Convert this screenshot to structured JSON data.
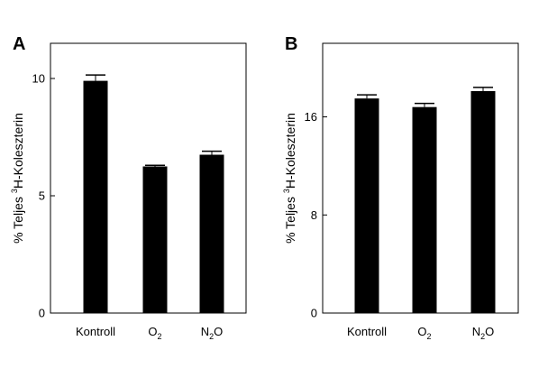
{
  "chart_data": [
    {
      "type": "bar",
      "panel_label": "A",
      "categories": [
        {
          "text": "Kontroll",
          "sub": ""
        },
        {
          "text": "O",
          "sub": "2"
        },
        {
          "text": "N",
          "sub": "2",
          "after": "O"
        }
      ],
      "values": [
        9.9,
        6.25,
        6.75
      ],
      "errors": [
        0.25,
        0.05,
        0.15
      ],
      "ylim": [
        0,
        11.5
      ],
      "yticks": [
        {
          "value": 0,
          "label": "0"
        },
        {
          "value": 5,
          "label": "5"
        },
        {
          "value": 10,
          "label": "10"
        }
      ],
      "ylabel": {
        "pre": "% Teljes ",
        "sup": "3",
        "post": "H-Koleszterin"
      },
      "bar_color": "#000000"
    },
    {
      "type": "bar",
      "panel_label": "B",
      "categories": [
        {
          "text": "Kontroll",
          "sub": ""
        },
        {
          "text": "O",
          "sub": "2"
        },
        {
          "text": "N",
          "sub": "2",
          "after": "O"
        }
      ],
      "values": [
        17.5,
        16.8,
        18.1
      ],
      "errors": [
        0.3,
        0.3,
        0.3
      ],
      "ylim": [
        0,
        22
      ],
      "yticks": [
        {
          "value": 0,
          "label": "0"
        },
        {
          "value": 8,
          "label": "8"
        },
        {
          "value": 16,
          "label": "16"
        }
      ],
      "ylabel": {
        "pre": "% Teljes ",
        "sup": "3",
        "post": "H-Koleszterin"
      },
      "bar_color": "#000000"
    }
  ]
}
